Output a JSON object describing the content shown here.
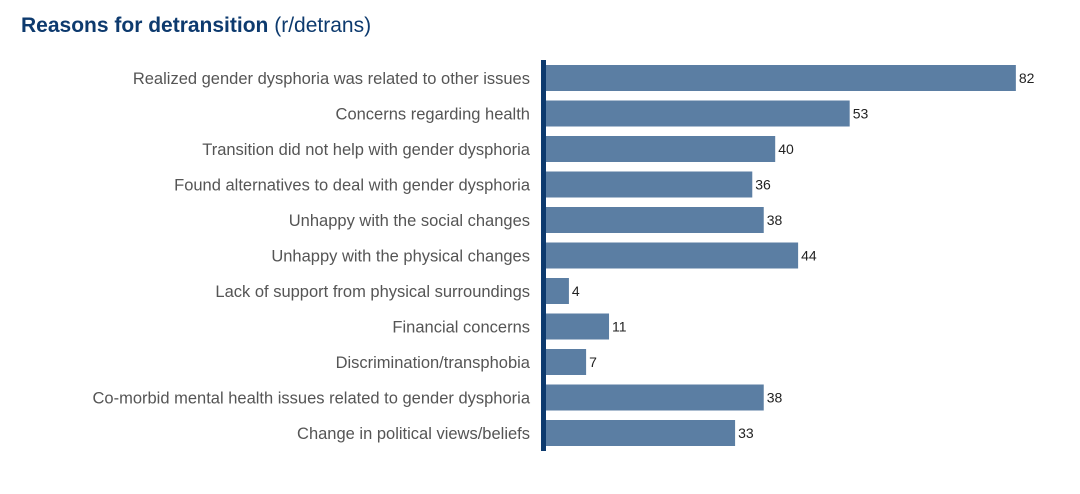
{
  "chart_data": {
    "type": "bar",
    "orientation": "horizontal",
    "title": "Reasons for detransition",
    "subtitle": "(r/detrans)",
    "categories": [
      "Realized gender dysphoria was related to other issues",
      "Concerns regarding health",
      "Transition did not help with gender dysphoria",
      "Found alternatives to deal with gender dysphoria",
      "Unhappy with the social changes",
      "Unhappy with the physical changes",
      "Lack of support from physical surroundings",
      "Financial concerns",
      "Discrimination/transphobia",
      "Co-morbid mental health issues related to gender dysphoria",
      "Change in political views/beliefs"
    ],
    "values": [
      82,
      53,
      40,
      36,
      38,
      44,
      4,
      11,
      7,
      38,
      33
    ],
    "xlim": [
      0,
      82
    ],
    "grid": false,
    "data_labels": true,
    "colors": {
      "bar": "#5b7ea3",
      "axis": "#0d3a6e",
      "title": "#0d3a6e"
    }
  }
}
